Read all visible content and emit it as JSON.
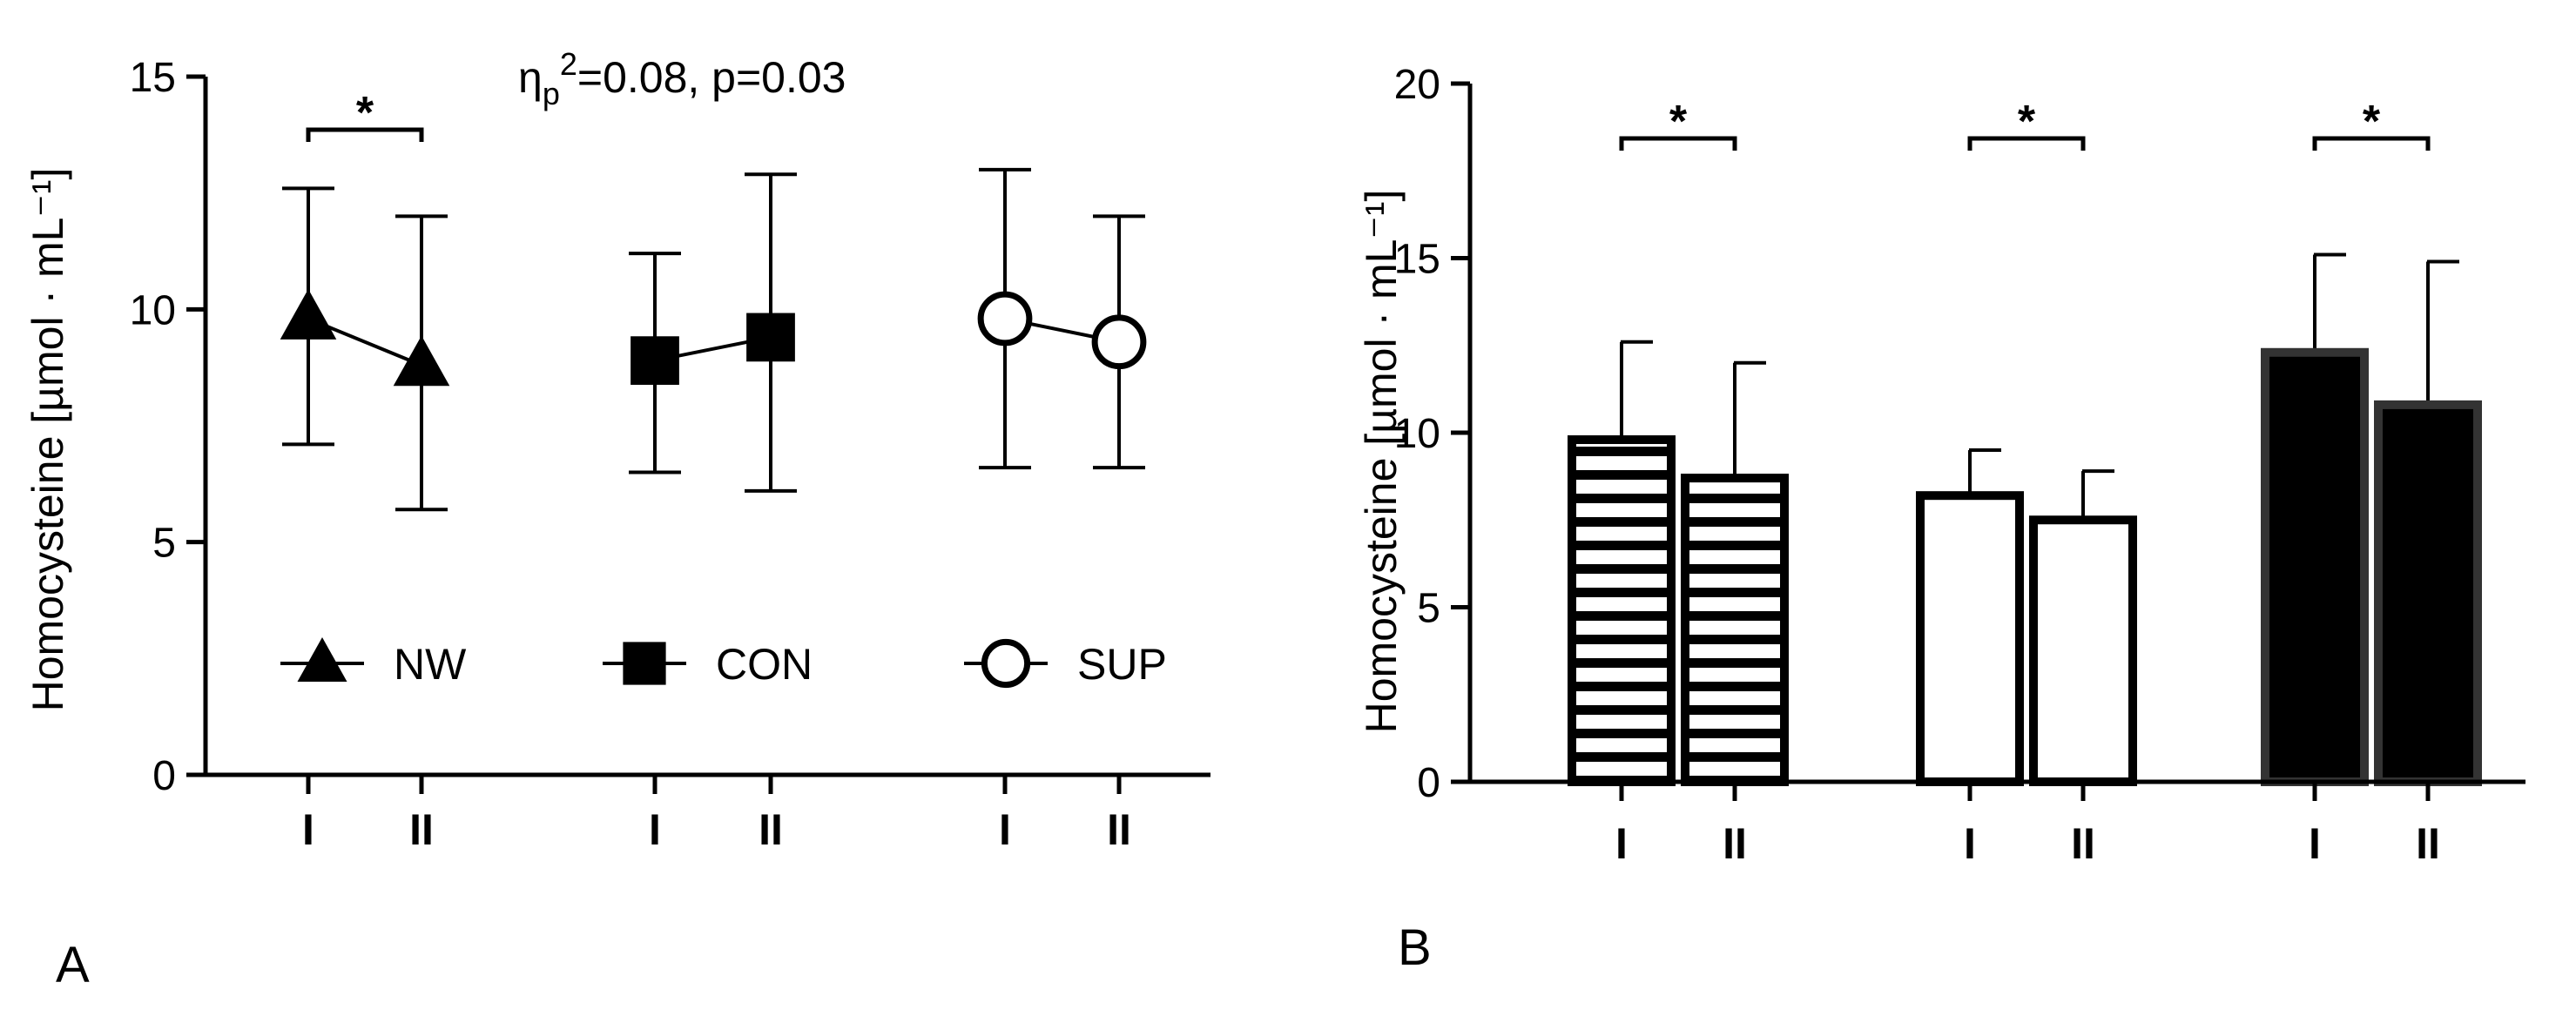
{
  "panel_labels": [
    "A",
    "B"
  ],
  "chart_data": [
    {
      "type": "line",
      "panel": "A",
      "ylabel": "Homocysteine [µmol · mL⁻¹]",
      "ylim": [
        0,
        15
      ],
      "yticks": [
        "0",
        "5",
        "10",
        "15"
      ],
      "annotation": "ηp²=0.08, p=0.03",
      "annotation_parts": {
        "eta": "η",
        "sub": "p",
        "sup": "2",
        "rest": "=0.08, p=0.03"
      },
      "categories": [
        "I",
        "II"
      ],
      "series": [
        {
          "name": "NW",
          "marker": "triangle",
          "values": [
            9.8,
            8.8
          ],
          "err_upper": [
            12.6,
            12.0
          ],
          "err_lower": [
            7.1,
            5.7
          ]
        },
        {
          "name": "CON",
          "marker": "square",
          "values": [
            8.9,
            9.4
          ],
          "err_upper": [
            11.2,
            12.9
          ],
          "err_lower": [
            6.5,
            6.1
          ]
        },
        {
          "name": "SUP",
          "marker": "circle",
          "values": [
            9.8,
            9.3
          ],
          "err_upper": [
            13.0,
            12.0
          ],
          "err_lower": [
            6.6,
            6.6
          ]
        }
      ],
      "significance": [
        {
          "series": "NW",
          "between": [
            "I",
            "II"
          ],
          "label": "*"
        }
      ],
      "legend_position": "lower inside, horizontal"
    },
    {
      "type": "bar",
      "panel": "B",
      "ylabel": "Homocysteine [µmol · mL⁻¹]",
      "ylim": [
        0,
        20
      ],
      "yticks": [
        "0",
        "5",
        "10",
        "15",
        "20"
      ],
      "categories": [
        "I",
        "II",
        "I",
        "II",
        "I",
        "II"
      ],
      "groups": [
        {
          "fill": "horizontal-stripes",
          "values": [
            9.8,
            8.7
          ],
          "err_upper": [
            12.6,
            12.0
          ]
        },
        {
          "fill": "white",
          "values": [
            8.2,
            7.5
          ],
          "err_upper": [
            9.5,
            8.9
          ]
        },
        {
          "fill": "black",
          "values": [
            12.3,
            10.8
          ],
          "err_upper": [
            15.1,
            14.9
          ]
        }
      ],
      "significance": [
        {
          "group": 0,
          "between": [
            "I",
            "II"
          ],
          "label": "*"
        },
        {
          "group": 1,
          "between": [
            "I",
            "II"
          ],
          "label": "*"
        },
        {
          "group": 2,
          "between": [
            "I",
            "II"
          ],
          "label": "*"
        }
      ]
    }
  ]
}
